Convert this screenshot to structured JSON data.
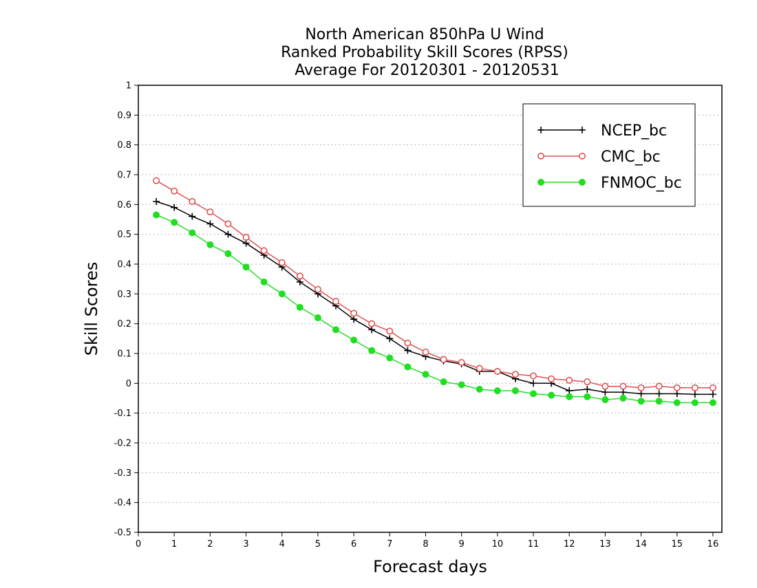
{
  "chart_data": {
    "type": "line",
    "title_lines": [
      "North American 850hPa U Wind",
      "Ranked Probability Skill Scores (RPSS)",
      " Average For 20120301 - 20120531"
    ],
    "xlabel": "Forecast days",
    "ylabel": "Skill Scores",
    "xlim": [
      0,
      16.25
    ],
    "ylim": [
      -0.5,
      1
    ],
    "x_ticks": [
      0,
      1,
      2,
      3,
      4,
      5,
      6,
      7,
      8,
      9,
      10,
      11,
      12,
      13,
      14,
      15,
      16
    ],
    "x_tick_labels": [
      "0",
      "1",
      "2",
      "3",
      "4",
      "5",
      "6",
      "7",
      "8",
      "9",
      "10",
      "11",
      "12",
      "13",
      "14",
      "15",
      "16"
    ],
    "y_ticks": [
      -0.5,
      -0.4,
      -0.3,
      -0.2,
      -0.1,
      0,
      0.1,
      0.2,
      0.3,
      0.4,
      0.5,
      0.6,
      0.7,
      0.8,
      0.9,
      1
    ],
    "y_tick_labels": [
      "-0.5",
      "-0.4",
      "-0.3",
      "-0.2",
      "-0.1",
      "0",
      "0.1",
      "0.2",
      "0.3",
      "0.4",
      "0.5",
      "0.6",
      "0.7",
      "0.8",
      "0.9",
      "1"
    ],
    "grid": "horizontal dotted",
    "legend_position": "top-right",
    "x": [
      0.5,
      1,
      1.5,
      2,
      2.5,
      3,
      3.5,
      4,
      4.5,
      5,
      5.5,
      6,
      6.5,
      7,
      7.5,
      8,
      8.5,
      9,
      9.5,
      10,
      10.5,
      11,
      11.5,
      12,
      12.5,
      13,
      13.5,
      14,
      14.5,
      15,
      15.5,
      16
    ],
    "series": [
      {
        "name": "NCEP_bc",
        "color": "#000000",
        "marker": "plus",
        "values": [
          0.61,
          0.59,
          0.56,
          0.535,
          0.5,
          0.47,
          0.43,
          0.39,
          0.34,
          0.3,
          0.26,
          0.215,
          0.18,
          0.15,
          0.11,
          0.09,
          0.075,
          0.065,
          0.04,
          0.04,
          0.015,
          0.0,
          0.0,
          -0.025,
          -0.02,
          -0.03,
          -0.03,
          -0.035,
          -0.035,
          -0.035,
          -0.037,
          -0.037
        ]
      },
      {
        "name": "CMC_bc",
        "color": "#e05050",
        "marker": "open-circle",
        "values": [
          0.68,
          0.645,
          0.61,
          0.575,
          0.535,
          0.49,
          0.445,
          0.405,
          0.36,
          0.315,
          0.275,
          0.235,
          0.2,
          0.175,
          0.135,
          0.105,
          0.08,
          0.07,
          0.05,
          0.04,
          0.03,
          0.025,
          0.015,
          0.01,
          0.005,
          -0.01,
          -0.01,
          -0.015,
          -0.01,
          -0.015,
          -0.015,
          -0.015
        ]
      },
      {
        "name": "FNMOC_bc",
        "color": "#22dd22",
        "marker": "filled-circle",
        "values": [
          0.565,
          0.54,
          0.505,
          0.465,
          0.435,
          0.39,
          0.34,
          0.3,
          0.255,
          0.22,
          0.18,
          0.145,
          0.11,
          0.085,
          0.055,
          0.03,
          0.005,
          -0.005,
          -0.02,
          -0.025,
          -0.025,
          -0.035,
          -0.04,
          -0.045,
          -0.045,
          -0.055,
          -0.05,
          -0.06,
          -0.06,
          -0.065,
          -0.065,
          -0.065
        ]
      }
    ]
  }
}
